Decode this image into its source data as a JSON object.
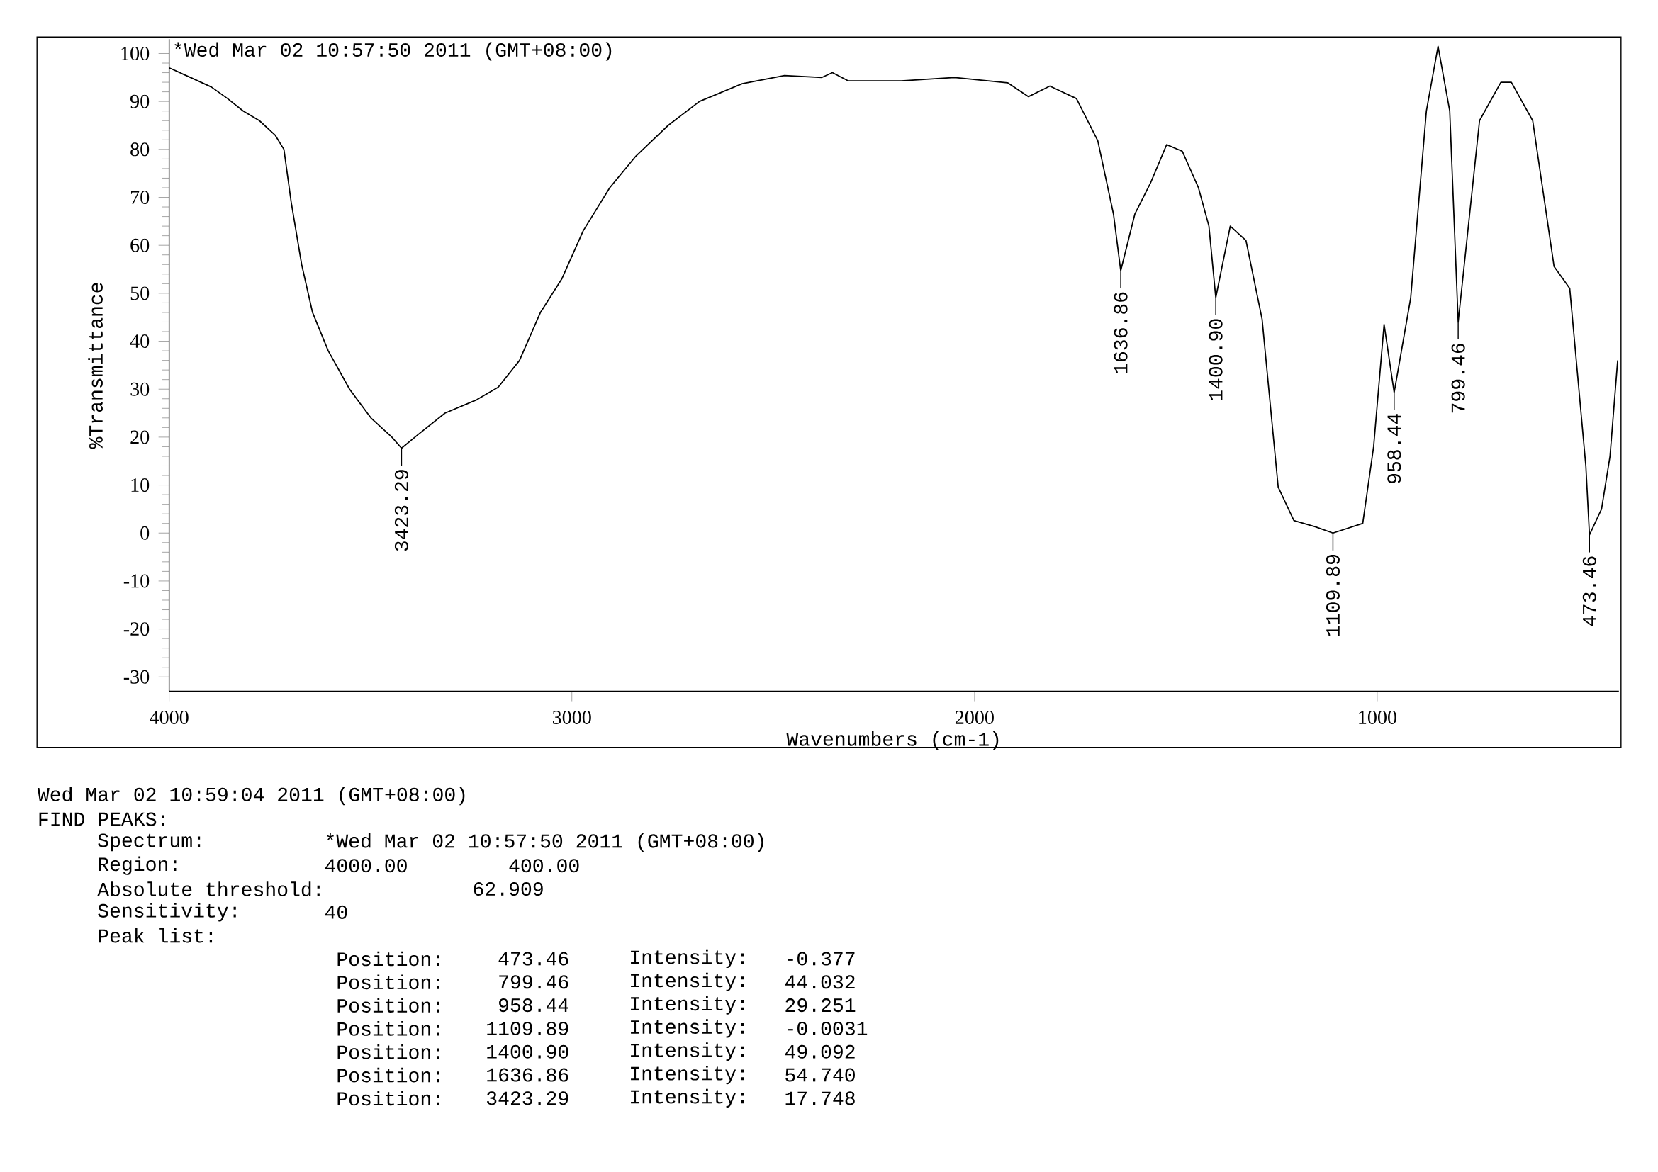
{
  "chart_data": {
    "type": "line",
    "xlabel": "Wavenumbers (cm-1)",
    "ylabel": "%Transmittance",
    "xlim": [
      4000,
      400
    ],
    "ylim": [
      -33,
      103
    ],
    "xticks": [
      4000,
      3000,
      2000,
      1000
    ],
    "yticks": [
      -30,
      -20,
      -10,
      0,
      10,
      20,
      30,
      40,
      50,
      60,
      70,
      80,
      90,
      100
    ],
    "marker": "none",
    "line_style": "solid",
    "series": [
      {
        "color": "#000000",
        "x": [
          4000,
          3947,
          3895,
          3855,
          3816,
          3776,
          3737,
          3715,
          3697,
          3671,
          3644,
          3605,
          3552,
          3499,
          3447,
          3423,
          3381,
          3315,
          3236,
          3183,
          3130,
          3078,
          3025,
          2972,
          2906,
          2841,
          2761,
          2683,
          2577,
          2472,
          2379,
          2353,
          2314,
          2182,
          2050,
          1918,
          1866,
          1813,
          1747,
          1694,
          1655,
          1637,
          1602,
          1563,
          1523,
          1484,
          1444,
          1418,
          1401,
          1365,
          1326,
          1286,
          1246,
          1207,
          1154,
          1110,
          1036,
          1009,
          983,
          958,
          917,
          878,
          849,
          820,
          799,
          746,
          693,
          667,
          614,
          561,
          522,
          482,
          473,
          443,
          422,
          403
        ],
        "values": [
          97,
          95,
          93,
          90.6,
          88,
          86,
          83,
          80,
          69,
          56,
          46,
          38,
          30,
          24,
          20,
          17.7,
          20.6,
          25,
          27.8,
          30.4,
          36,
          46,
          53,
          63,
          72,
          78.6,
          85,
          90,
          93.7,
          95.4,
          95,
          96,
          94.3,
          94.3,
          95,
          93.9,
          91,
          93.2,
          90.6,
          81.8,
          66.5,
          54.7,
          66.5,
          73,
          81,
          79.6,
          72,
          64,
          49.1,
          64,
          61,
          44.6,
          9.6,
          2.6,
          1.3,
          0,
          2,
          18,
          43.5,
          29.3,
          49,
          88,
          101.5,
          88,
          44,
          86,
          94,
          94,
          86,
          55.6,
          51,
          14,
          -0.4,
          5,
          16,
          36
        ]
      }
    ],
    "annotations": [
      "*Wed Mar 02 10:57:50 2011 (GMT+08:00)",
      {
        "text": "473.46",
        "x": 473,
        "y": -0.4
      },
      {
        "text": "799.46",
        "x": 799,
        "y": 44
      },
      {
        "text": "958.44",
        "x": 958,
        "y": 29.3
      },
      {
        "text": "1109.89",
        "x": 1110,
        "y": 0
      },
      {
        "text": "1400.90",
        "x": 1401,
        "y": 49.1
      },
      {
        "text": "1636.86",
        "x": 1637,
        "y": 54.7
      },
      {
        "text": "3423.29",
        "x": 3423,
        "y": 17.7
      },
      "Wed Mar 02 10:59:04 2011 (GMT+08:00)",
      "FIND PEAKS:",
      "Spectrum:",
      "*Wed Mar 02 10:57:50 2011 (GMT+08:00)",
      "Region:",
      "4000.00",
      "400.00",
      "Absolute threshold:",
      "62.909",
      "Sensitivity:",
      "40",
      "Peak list:",
      "Position:",
      "473.46",
      "Intensity:",
      "-0.377",
      "Position:",
      "799.46",
      "Intensity:",
      "44.032",
      "Position:",
      "958.44",
      "Intensity:",
      "29.251",
      "Position:",
      "1109.89",
      "Intensity:",
      "-0.0031",
      "Position:",
      "1400.90",
      "Intensity:",
      "49.092",
      "Position:",
      "1636.86",
      "Intensity:",
      "54.740",
      "Position:",
      "3423.29",
      "Intensity:",
      "17.748"
    ]
  }
}
